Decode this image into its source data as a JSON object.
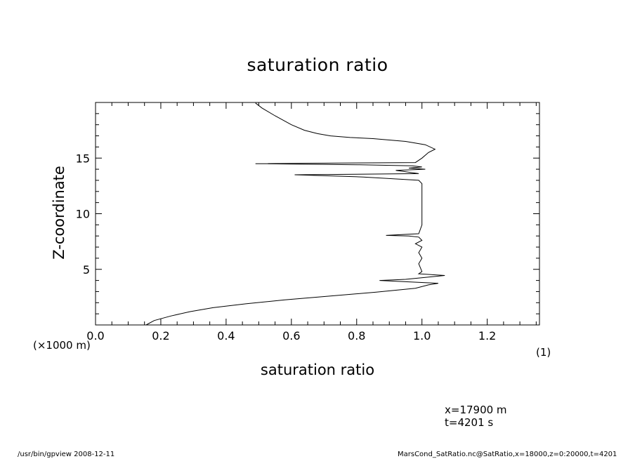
{
  "chart_data": {
    "type": "line",
    "title": "saturation ratio",
    "xlabel": "saturation ratio",
    "ylabel": "Z-coordinate",
    "xlim": [
      0.0,
      1.36
    ],
    "ylim": [
      0,
      20
    ],
    "x_ticks": [
      "0.0",
      "0.2",
      "0.4",
      "0.6",
      "0.8",
      "1.0",
      "1.2"
    ],
    "y_ticks": [
      "5",
      "10",
      "15"
    ],
    "y_scale_note": "(×1000 m)",
    "x_unit_note": "(1)",
    "grid": false,
    "series": [
      {
        "points": [
          [
            0.155,
            0.0
          ],
          [
            0.18,
            0.4
          ],
          [
            0.23,
            0.8
          ],
          [
            0.29,
            1.2
          ],
          [
            0.36,
            1.55
          ],
          [
            0.46,
            1.9
          ],
          [
            0.58,
            2.25
          ],
          [
            0.72,
            2.6
          ],
          [
            0.86,
            2.95
          ],
          [
            0.98,
            3.3
          ],
          [
            1.02,
            3.6
          ],
          [
            1.05,
            3.75
          ],
          [
            0.87,
            4.0
          ],
          [
            0.95,
            4.1
          ],
          [
            1.07,
            4.45
          ],
          [
            0.99,
            4.6
          ],
          [
            1.0,
            4.8
          ],
          [
            0.99,
            5.5
          ],
          [
            1.0,
            6.0
          ],
          [
            0.99,
            6.5
          ],
          [
            1.0,
            7.0
          ],
          [
            0.98,
            7.3
          ],
          [
            1.0,
            7.6
          ],
          [
            0.99,
            7.9
          ],
          [
            0.96,
            8.0
          ],
          [
            0.89,
            8.05
          ],
          [
            0.99,
            8.2
          ],
          [
            1.0,
            9.0
          ],
          [
            1.0,
            10.0
          ],
          [
            1.0,
            11.0
          ],
          [
            1.0,
            12.0
          ],
          [
            1.0,
            12.7
          ],
          [
            0.99,
            13.0
          ],
          [
            0.82,
            13.3
          ],
          [
            0.61,
            13.5
          ],
          [
            0.99,
            13.6
          ],
          [
            0.92,
            13.9
          ],
          [
            1.01,
            14.0
          ],
          [
            0.96,
            14.1
          ],
          [
            1.0,
            14.2
          ],
          [
            0.97,
            14.3
          ],
          [
            0.81,
            14.4
          ],
          [
            0.49,
            14.5
          ],
          [
            0.98,
            14.6
          ],
          [
            1.0,
            15.0
          ],
          [
            1.02,
            15.5
          ],
          [
            1.04,
            15.8
          ],
          [
            1.01,
            16.2
          ],
          [
            0.95,
            16.5
          ],
          [
            0.85,
            16.75
          ],
          [
            0.78,
            16.85
          ],
          [
            0.72,
            17.0
          ],
          [
            0.68,
            17.2
          ],
          [
            0.64,
            17.5
          ],
          [
            0.6,
            18.0
          ],
          [
            0.55,
            18.8
          ],
          [
            0.51,
            19.5
          ],
          [
            0.49,
            19.95
          ]
        ]
      }
    ]
  },
  "annotations": {
    "location_line1": "x=17900  m",
    "location_line2": "t=4201  s"
  },
  "footer": {
    "left": "/usr/bin/gpview   2008-12-11",
    "right": "MarsCond_SatRatio.nc@SatRatio,x=18000,z=0:20000,t=4201"
  },
  "colors": {
    "line": "#000000",
    "background": "#ffffff"
  }
}
